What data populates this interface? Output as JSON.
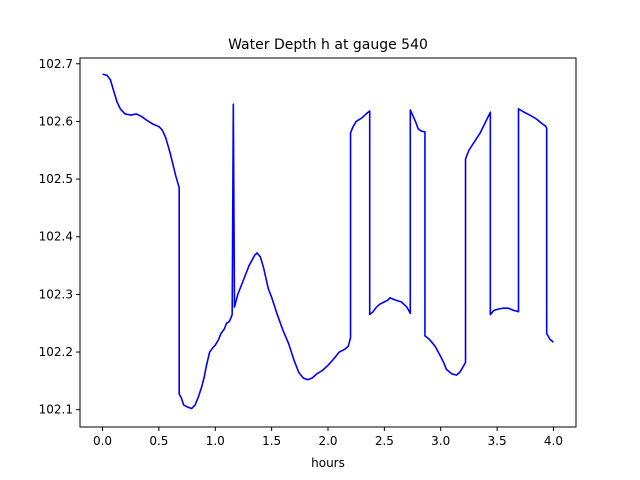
{
  "chart_data": {
    "type": "line",
    "title": "Water Depth h at gauge 540",
    "xlabel": "hours",
    "ylabel": "",
    "xlim": [
      -0.2,
      4.2
    ],
    "ylim": [
      102.07,
      102.71
    ],
    "xticks": [
      0.0,
      0.5,
      1.0,
      1.5,
      2.0,
      2.5,
      3.0,
      3.5,
      4.0
    ],
    "xtick_labels": [
      "0.0",
      "0.5",
      "1.0",
      "1.5",
      "2.0",
      "2.5",
      "3.0",
      "3.5",
      "4.0"
    ],
    "yticks": [
      102.1,
      102.2,
      102.3,
      102.4,
      102.5,
      102.6,
      102.7
    ],
    "ytick_labels": [
      "102.1",
      "102.2",
      "102.3",
      "102.4",
      "102.5",
      "102.6",
      "102.7"
    ],
    "grid": false,
    "series": [
      {
        "color": "#0000ff",
        "x": [
          0.0,
          0.04,
          0.07,
          0.1,
          0.13,
          0.16,
          0.2,
          0.25,
          0.3,
          0.35,
          0.4,
          0.45,
          0.5,
          0.53,
          0.56,
          0.6,
          0.65,
          0.68,
          0.68,
          0.7,
          0.72,
          0.75,
          0.79,
          0.82,
          0.85,
          0.88,
          0.9,
          0.92,
          0.95,
          0.98,
          1.0,
          1.03,
          1.05,
          1.08,
          1.1,
          1.12,
          1.13,
          1.15,
          1.16,
          1.16,
          1.17,
          1.17,
          1.2,
          1.25,
          1.3,
          1.35,
          1.37,
          1.4,
          1.43,
          1.47,
          1.5,
          1.55,
          1.6,
          1.65,
          1.7,
          1.74,
          1.78,
          1.82,
          1.86,
          1.9,
          1.95,
          2.0,
          2.05,
          2.1,
          2.15,
          2.18,
          2.2,
          2.2,
          2.22,
          2.25,
          2.3,
          2.35,
          2.37,
          2.37,
          2.4,
          2.43,
          2.46,
          2.5,
          2.53,
          2.55,
          2.6,
          2.65,
          2.7,
          2.73,
          2.73,
          2.78,
          2.8,
          2.83,
          2.86,
          2.86,
          2.9,
          2.95,
          3.0,
          3.03,
          3.05,
          3.1,
          3.14,
          3.17,
          3.2,
          3.22,
          3.22,
          3.25,
          3.3,
          3.35,
          3.4,
          3.44,
          3.44,
          3.47,
          3.5,
          3.55,
          3.6,
          3.65,
          3.69,
          3.69,
          3.73,
          3.8,
          3.85,
          3.9,
          3.93,
          3.94,
          3.94,
          3.97,
          4.0
        ],
        "y": [
          102.682,
          102.68,
          102.672,
          102.652,
          102.633,
          102.621,
          102.613,
          102.611,
          102.613,
          102.608,
          102.601,
          102.595,
          102.591,
          102.585,
          102.572,
          102.545,
          102.505,
          102.485,
          102.127,
          102.12,
          102.108,
          102.105,
          102.102,
          102.108,
          102.122,
          102.14,
          102.155,
          102.175,
          102.2,
          102.208,
          102.212,
          102.222,
          102.232,
          102.24,
          102.25,
          102.252,
          102.255,
          102.265,
          102.625,
          102.63,
          102.29,
          102.278,
          102.3,
          102.325,
          102.35,
          102.368,
          102.372,
          102.365,
          102.345,
          102.31,
          102.295,
          102.265,
          102.238,
          102.215,
          102.185,
          102.165,
          102.155,
          102.152,
          102.155,
          102.162,
          102.168,
          102.177,
          102.188,
          102.2,
          102.205,
          102.21,
          102.225,
          102.58,
          102.59,
          102.6,
          102.606,
          102.615,
          102.618,
          102.265,
          102.27,
          102.278,
          102.283,
          102.287,
          102.29,
          102.294,
          102.29,
          102.287,
          102.278,
          102.267,
          102.62,
          102.598,
          102.587,
          102.583,
          102.582,
          102.228,
          102.222,
          102.21,
          102.192,
          102.18,
          102.17,
          102.162,
          102.16,
          102.165,
          102.175,
          102.182,
          102.535,
          102.55,
          102.565,
          102.58,
          102.6,
          102.616,
          102.265,
          102.272,
          102.274,
          102.276,
          102.276,
          102.272,
          102.27,
          102.622,
          102.617,
          102.61,
          102.604,
          102.596,
          102.592,
          102.588,
          102.232,
          102.222,
          102.217
        ]
      }
    ]
  }
}
